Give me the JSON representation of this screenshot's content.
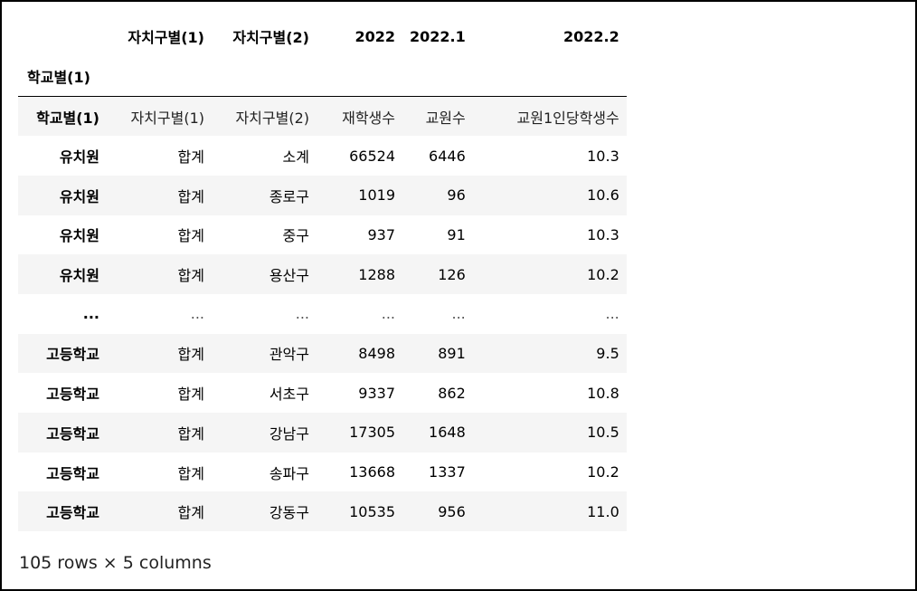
{
  "columns": {
    "level0": [
      "",
      "자치구별(1)",
      "자치구별(2)",
      "2022",
      "2022.1",
      "2022.2"
    ],
    "index_name": "학교별(1)"
  },
  "rows": [
    [
      "학교별(1)",
      "자치구별(1)",
      "자치구별(2)",
      "재학생수",
      "교원수",
      "교원1인당학생수"
    ],
    [
      "유치원",
      "합계",
      "소계",
      "66524",
      "6446",
      "10.3"
    ],
    [
      "유치원",
      "합계",
      "종로구",
      "1019",
      "96",
      "10.6"
    ],
    [
      "유치원",
      "합계",
      "중구",
      "937",
      "91",
      "10.3"
    ],
    [
      "유치원",
      "합계",
      "용산구",
      "1288",
      "126",
      "10.2"
    ],
    [
      "...",
      "...",
      "...",
      "...",
      "...",
      "..."
    ],
    [
      "고등학교",
      "합계",
      "관악구",
      "8498",
      "891",
      "9.5"
    ],
    [
      "고등학교",
      "합계",
      "서초구",
      "9337",
      "862",
      "10.8"
    ],
    [
      "고등학교",
      "합계",
      "강남구",
      "17305",
      "1648",
      "10.5"
    ],
    [
      "고등학교",
      "합계",
      "송파구",
      "13668",
      "1337",
      "10.2"
    ],
    [
      "고등학교",
      "합계",
      "강동구",
      "10535",
      "956",
      "11.0"
    ]
  ],
  "footer": "105 rows × 5 columns"
}
